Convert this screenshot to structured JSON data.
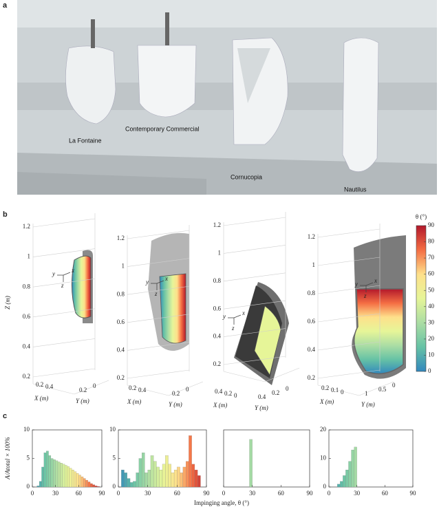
{
  "panel_a": {
    "label": "a",
    "captions": [
      "La Fontaine",
      "Contemporary Commercial",
      "Cornucopia",
      "Nautilus"
    ]
  },
  "panel_b": {
    "label": "b",
    "z_label": "Z (m)",
    "x_label": "X (m)",
    "y_label": "Y (m)",
    "triad": [
      "x",
      "y",
      "z"
    ],
    "plots": [
      {
        "zlim": [
          0.2,
          1.2
        ],
        "zticks": [
          0.2,
          0.4,
          0.6,
          0.8,
          1,
          1.2
        ],
        "x_ticks": [
          0.2,
          0.4
        ],
        "y_ticks": [
          0.2,
          0
        ]
      },
      {
        "zlim": [
          0.2,
          1.2
        ],
        "zticks": [
          0.2,
          0.4,
          0.6,
          0.8,
          1,
          1.2
        ],
        "x_ticks": [
          0.2,
          0.4
        ],
        "y_ticks": [
          0.2,
          0
        ]
      },
      {
        "zlim": [
          0.2,
          1.2
        ],
        "zticks": [
          0.2,
          0.4,
          0.6,
          0.8,
          1,
          1.2
        ],
        "x_ticks": [
          0.4,
          0.2,
          0
        ],
        "y_ticks": [
          0.4,
          0.2,
          0
        ]
      },
      {
        "zlim": [
          0.2,
          1.2
        ],
        "zticks": [
          0.2,
          0.4,
          0.6,
          0.8,
          1,
          1.2
        ],
        "x_ticks": [
          0.2,
          0.1,
          0
        ],
        "y_ticks": [
          1,
          0.5,
          0
        ]
      }
    ],
    "colorbar": {
      "title": "θ (°)",
      "lim": [
        0,
        90
      ],
      "ticks": [
        0,
        10,
        20,
        30,
        40,
        50,
        60,
        70,
        80,
        90
      ],
      "colors": [
        "#3288bd",
        "#66c2a5",
        "#abdda4",
        "#e6f598",
        "#fee08b",
        "#f46d43",
        "#b2182b"
      ]
    }
  },
  "panel_c": {
    "label": "c",
    "x_label": "Impinging angle, θ (°)",
    "y_label": "A/Atotal × 100%"
  },
  "chart_data": [
    {
      "type": "histogram",
      "bins": [
        0,
        3,
        6,
        9,
        12,
        15,
        18,
        21,
        24,
        27,
        30,
        33,
        36,
        39,
        42,
        45,
        48,
        51,
        54,
        57,
        60,
        63,
        66,
        69,
        72,
        75,
        78,
        81,
        84,
        87,
        90
      ],
      "values": [
        0,
        0,
        0.2,
        1.0,
        3.5,
        6.0,
        6.3,
        5.5,
        5.0,
        4.8,
        4.6,
        4.4,
        4.2,
        4.0,
        3.8,
        3.6,
        3.3,
        3.0,
        2.7,
        2.4,
        2.1,
        1.8,
        1.5,
        1.2,
        0.9,
        0.6,
        0.4,
        0.2,
        0.1,
        0
      ],
      "xlim": [
        0,
        90
      ],
      "xticks": [
        0,
        30,
        60,
        90
      ],
      "ylim": [
        0,
        10
      ],
      "yticks": [
        0,
        5,
        10
      ]
    },
    {
      "type": "histogram",
      "bins": [
        0,
        3,
        6,
        9,
        12,
        15,
        18,
        21,
        24,
        27,
        30,
        33,
        36,
        39,
        42,
        45,
        48,
        51,
        54,
        57,
        60,
        63,
        66,
        69,
        72,
        75,
        78,
        81,
        84,
        87,
        90
      ],
      "values": [
        0,
        3,
        2.5,
        1.5,
        0.8,
        1.0,
        2.5,
        5.0,
        6.0,
        2.5,
        3.0,
        5.5,
        4.5,
        3.5,
        3.0,
        4.0,
        5.5,
        4.0,
        2.5,
        3.0,
        3.5,
        2.5,
        3.5,
        4.5,
        9.0,
        4.0,
        3.0,
        2.0,
        0,
        0
      ],
      "xlim": [
        0,
        90
      ],
      "xticks": [
        0,
        30,
        60,
        90
      ],
      "ylim": [
        0,
        10
      ],
      "yticks": [
        0,
        5,
        10
      ]
    },
    {
      "type": "histogram",
      "bins": [
        0,
        3,
        6,
        9,
        12,
        15,
        18,
        21,
        24,
        27,
        30,
        33,
        36,
        39,
        42,
        45,
        48,
        51,
        54,
        57,
        60,
        63,
        66,
        69,
        72,
        75,
        78,
        81,
        84,
        87,
        90
      ],
      "values": [
        0,
        0,
        0,
        0,
        0,
        0,
        0,
        0,
        0,
        50,
        0,
        0,
        0,
        0,
        0,
        0,
        0,
        0,
        0,
        0,
        0,
        0,
        0,
        0,
        0,
        0,
        0,
        0,
        0,
        0
      ],
      "xlim": [
        0,
        90
      ],
      "xticks": [
        0,
        30,
        60,
        90
      ],
      "ylim": [
        0,
        60
      ],
      "yticks": []
    },
    {
      "type": "histogram",
      "bins": [
        0,
        3,
        6,
        9,
        12,
        15,
        18,
        21,
        24,
        27,
        30,
        33,
        36,
        39,
        42,
        45,
        48,
        51,
        54,
        57,
        60,
        63,
        66,
        69,
        72,
        75,
        78,
        81,
        84,
        87,
        90
      ],
      "values": [
        0,
        0,
        0,
        1,
        2,
        4,
        6,
        9,
        13,
        14,
        0,
        0,
        0,
        0,
        0,
        0,
        0,
        0,
        0,
        0,
        0,
        0,
        0,
        0,
        0,
        0,
        0,
        0,
        0,
        0
      ],
      "xlim": [
        0,
        90
      ],
      "xticks": [
        0,
        30,
        60,
        90
      ],
      "ylim": [
        0,
        20
      ],
      "yticks": [
        0,
        10,
        20
      ]
    }
  ]
}
